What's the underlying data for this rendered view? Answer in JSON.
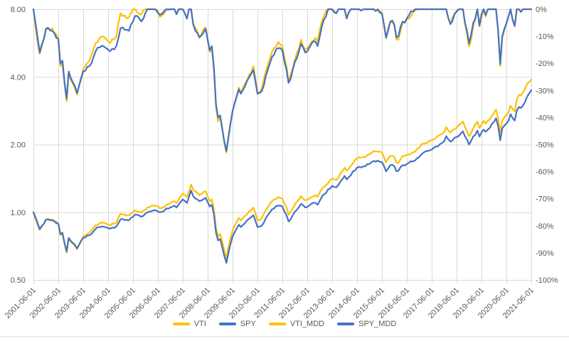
{
  "figure": {
    "background": "#ffffff",
    "grid_color": "#d9d9d9",
    "frame_line_color": "#d9d9d9",
    "tick_label_color": "#595959",
    "accent_yellow": "#FFC000",
    "accent_blue": "#4472C4"
  },
  "left_axis": {
    "scale": "log2",
    "min": 0.5,
    "max": 8.0,
    "ticks": [
      "8.00",
      "4.00",
      "2.00",
      "1.00",
      "0.50"
    ]
  },
  "right_axis": {
    "scale": "linear",
    "min": -100,
    "max": 0,
    "ticks": [
      "0%",
      "-10%",
      "-20%",
      "-30%",
      "-40%",
      "-50%",
      "-60%",
      "-70%",
      "-80%",
      "-90%",
      "-100%"
    ]
  },
  "x_axis": {
    "ticks": [
      "2001-06-01",
      "2002-06-01",
      "2003-06-01",
      "2004-06-01",
      "2005-06-01",
      "2006-06-01",
      "2007-06-01",
      "2008-06-01",
      "2009-06-01",
      "2010-06-01",
      "2011-06-01",
      "2012-06-01",
      "2013-06-01",
      "2014-06-01",
      "2015-06-01",
      "2016-06-01",
      "2017-06-01",
      "2018-06-01",
      "2019-06-01",
      "2020-06-01",
      "2021-06-01"
    ]
  },
  "legend": [
    {
      "label": "VTI",
      "color": "#FFC000"
    },
    {
      "label": "SPY",
      "color": "#4472C4"
    },
    {
      "label": "VTI_MDD",
      "color": "#FFC000"
    },
    {
      "label": "SPY_MDD",
      "color": "#4472C4"
    }
  ],
  "chart_data": {
    "type": "line",
    "title": "",
    "x_start": "2001-06",
    "x_end": "2021-06",
    "frequency": "monthly",
    "grid": true,
    "legend_position": "bottom",
    "left_axis_range": [
      0.5,
      8.0
    ],
    "right_axis_range": [
      -100,
      0
    ],
    "series": [
      {
        "name": "VTI",
        "color": "#FFC000",
        "axis": "left",
        "description": "VTI cumulative growth of $1 since 2001-06 (log scale), monthly",
        "anchors": [
          [
            "2001-06",
            1.0
          ],
          [
            "2001-09",
            0.835
          ],
          [
            "2001-12",
            0.93
          ],
          [
            "2002-03",
            0.93
          ],
          [
            "2002-06",
            0.89
          ],
          [
            "2002-07",
            0.79
          ],
          [
            "2002-08",
            0.8
          ],
          [
            "2002-09",
            0.72
          ],
          [
            "2002-10",
            0.66
          ],
          [
            "2002-11",
            0.76
          ],
          [
            "2003-01",
            0.725
          ],
          [
            "2003-03",
            0.685
          ],
          [
            "2003-06",
            0.78
          ],
          [
            "2003-09",
            0.81
          ],
          [
            "2003-12",
            0.875
          ],
          [
            "2004-03",
            0.9
          ],
          [
            "2004-07",
            0.875
          ],
          [
            "2004-10",
            0.9
          ],
          [
            "2004-12",
            0.985
          ],
          [
            "2005-04",
            0.97
          ],
          [
            "2005-07",
            1.02
          ],
          [
            "2005-10",
            1.0
          ],
          [
            "2006-01",
            1.05
          ],
          [
            "2006-05",
            1.07
          ],
          [
            "2006-07",
            1.04
          ],
          [
            "2006-12",
            1.1
          ],
          [
            "2007-02",
            1.12
          ],
          [
            "2007-03",
            1.1
          ],
          [
            "2007-06",
            1.21
          ],
          [
            "2007-08",
            1.17
          ],
          [
            "2007-10",
            1.33
          ],
          [
            "2007-11",
            1.26
          ],
          [
            "2008-02",
            1.19
          ],
          [
            "2008-05",
            1.24
          ],
          [
            "2008-07",
            1.12
          ],
          [
            "2008-08",
            1.14
          ],
          [
            "2008-09",
            1.03
          ],
          [
            "2008-10",
            0.85
          ],
          [
            "2008-11",
            0.78
          ],
          [
            "2008-12",
            0.8
          ],
          [
            "2009-02",
            0.675
          ],
          [
            "2009-03",
            0.625
          ],
          [
            "2009-04",
            0.7
          ],
          [
            "2009-06",
            0.83
          ],
          [
            "2009-09",
            0.945
          ],
          [
            "2009-10",
            0.92
          ],
          [
            "2010-01",
            0.98
          ],
          [
            "2010-04",
            1.05
          ],
          [
            "2010-06",
            0.92
          ],
          [
            "2010-08",
            0.94
          ],
          [
            "2010-12",
            1.09
          ],
          [
            "2011-02",
            1.14
          ],
          [
            "2011-04",
            1.17
          ],
          [
            "2011-06",
            1.15
          ],
          [
            "2011-08",
            1.05
          ],
          [
            "2011-09",
            0.975
          ],
          [
            "2011-11",
            1.04
          ],
          [
            "2012-03",
            1.18
          ],
          [
            "2012-05",
            1.13
          ],
          [
            "2012-08",
            1.17
          ],
          [
            "2012-10",
            1.19
          ],
          [
            "2012-11",
            1.17
          ],
          [
            "2013-01",
            1.27
          ],
          [
            "2013-06",
            1.41
          ],
          [
            "2013-08",
            1.39
          ],
          [
            "2013-12",
            1.58
          ],
          [
            "2014-01",
            1.53
          ],
          [
            "2014-06",
            1.74
          ],
          [
            "2014-09",
            1.76
          ],
          [
            "2014-12",
            1.81
          ],
          [
            "2015-02",
            1.87
          ],
          [
            "2015-06",
            1.85
          ],
          [
            "2015-08",
            1.67
          ],
          [
            "2015-10",
            1.78
          ],
          [
            "2015-12",
            1.76
          ],
          [
            "2016-01",
            1.66
          ],
          [
            "2016-02",
            1.66
          ],
          [
            "2016-04",
            1.78
          ],
          [
            "2016-06",
            1.8
          ],
          [
            "2016-10",
            1.86
          ],
          [
            "2016-11",
            1.92
          ],
          [
            "2017-02",
            2.02
          ],
          [
            "2017-06",
            2.09
          ],
          [
            "2017-12",
            2.27
          ],
          [
            "2018-01",
            2.39
          ],
          [
            "2018-03",
            2.26
          ],
          [
            "2018-06",
            2.38
          ],
          [
            "2018-09",
            2.53
          ],
          [
            "2018-12",
            2.18
          ],
          [
            "2019-04",
            2.53
          ],
          [
            "2019-05",
            2.37
          ],
          [
            "2019-07",
            2.55
          ],
          [
            "2019-08",
            2.48
          ],
          [
            "2019-12",
            2.76
          ],
          [
            "2020-01",
            2.86
          ],
          [
            "2020-02",
            2.63
          ],
          [
            "2020-03",
            2.26
          ],
          [
            "2020-04",
            2.56
          ],
          [
            "2020-07",
            2.78
          ],
          [
            "2020-08",
            2.98
          ],
          [
            "2020-09",
            2.87
          ],
          [
            "2020-10",
            2.81
          ],
          [
            "2020-11",
            3.17
          ],
          [
            "2020-12",
            3.32
          ],
          [
            "2021-01",
            3.31
          ],
          [
            "2021-03",
            3.56
          ],
          [
            "2021-04",
            3.73
          ],
          [
            "2021-06",
            3.89
          ]
        ]
      },
      {
        "name": "SPY",
        "color": "#4472C4",
        "axis": "left",
        "description": "SPY cumulative growth of $1 since 2001-06 (log scale), monthly",
        "anchors": [
          [
            "2001-06",
            1.0
          ],
          [
            "2001-09",
            0.84
          ],
          [
            "2001-12",
            0.925
          ],
          [
            "2002-03",
            0.92
          ],
          [
            "2002-06",
            0.89
          ],
          [
            "2002-07",
            0.8
          ],
          [
            "2002-08",
            0.81
          ],
          [
            "2002-09",
            0.73
          ],
          [
            "2002-10",
            0.67
          ],
          [
            "2002-11",
            0.77
          ],
          [
            "2003-01",
            0.73
          ],
          [
            "2003-03",
            0.69
          ],
          [
            "2003-06",
            0.77
          ],
          [
            "2003-09",
            0.79
          ],
          [
            "2003-12",
            0.845
          ],
          [
            "2004-03",
            0.865
          ],
          [
            "2004-07",
            0.845
          ],
          [
            "2004-10",
            0.865
          ],
          [
            "2004-12",
            0.93
          ],
          [
            "2005-04",
            0.92
          ],
          [
            "2005-07",
            0.975
          ],
          [
            "2005-10",
            0.955
          ],
          [
            "2006-01",
            1.0
          ],
          [
            "2006-05",
            1.02
          ],
          [
            "2006-07",
            1.0
          ],
          [
            "2006-12",
            1.05
          ],
          [
            "2007-02",
            1.07
          ],
          [
            "2007-03",
            1.05
          ],
          [
            "2007-06",
            1.14
          ],
          [
            "2007-08",
            1.1
          ],
          [
            "2007-10",
            1.25
          ],
          [
            "2007-11",
            1.18
          ],
          [
            "2008-02",
            1.12
          ],
          [
            "2008-05",
            1.16
          ],
          [
            "2008-07",
            1.06
          ],
          [
            "2008-08",
            1.08
          ],
          [
            "2008-09",
            0.98
          ],
          [
            "2008-10",
            0.81
          ],
          [
            "2008-11",
            0.75
          ],
          [
            "2008-12",
            0.76
          ],
          [
            "2009-02",
            0.64
          ],
          [
            "2009-03",
            0.595
          ],
          [
            "2009-04",
            0.66
          ],
          [
            "2009-06",
            0.78
          ],
          [
            "2009-09",
            0.88
          ],
          [
            "2009-10",
            0.86
          ],
          [
            "2010-01",
            0.92
          ],
          [
            "2010-04",
            0.97
          ],
          [
            "2010-06",
            0.86
          ],
          [
            "2010-08",
            0.87
          ],
          [
            "2010-12",
            1.0
          ],
          [
            "2011-02",
            1.04
          ],
          [
            "2011-04",
            1.07
          ],
          [
            "2011-06",
            1.06
          ],
          [
            "2011-08",
            0.97
          ],
          [
            "2011-09",
            0.91
          ],
          [
            "2011-11",
            0.97
          ],
          [
            "2012-03",
            1.09
          ],
          [
            "2012-05",
            1.05
          ],
          [
            "2012-08",
            1.09
          ],
          [
            "2012-10",
            1.1
          ],
          [
            "2012-11",
            1.08
          ],
          [
            "2013-01",
            1.17
          ],
          [
            "2013-06",
            1.31
          ],
          [
            "2013-08",
            1.29
          ],
          [
            "2013-12",
            1.45
          ],
          [
            "2014-01",
            1.4
          ],
          [
            "2014-06",
            1.58
          ],
          [
            "2014-09",
            1.6
          ],
          [
            "2014-12",
            1.64
          ],
          [
            "2015-02",
            1.69
          ],
          [
            "2015-06",
            1.67
          ],
          [
            "2015-08",
            1.52
          ],
          [
            "2015-10",
            1.62
          ],
          [
            "2015-12",
            1.6
          ],
          [
            "2016-01",
            1.52
          ],
          [
            "2016-02",
            1.53
          ],
          [
            "2016-04",
            1.62
          ],
          [
            "2016-06",
            1.64
          ],
          [
            "2016-10",
            1.7
          ],
          [
            "2016-11",
            1.74
          ],
          [
            "2017-02",
            1.84
          ],
          [
            "2017-06",
            1.9
          ],
          [
            "2017-12",
            2.07
          ],
          [
            "2018-01",
            2.18
          ],
          [
            "2018-03",
            2.06
          ],
          [
            "2018-06",
            2.16
          ],
          [
            "2018-09",
            2.29
          ],
          [
            "2018-12",
            2.0
          ],
          [
            "2019-04",
            2.31
          ],
          [
            "2019-05",
            2.17
          ],
          [
            "2019-07",
            2.33
          ],
          [
            "2019-08",
            2.28
          ],
          [
            "2019-12",
            2.52
          ],
          [
            "2020-01",
            2.62
          ],
          [
            "2020-02",
            2.42
          ],
          [
            "2020-03",
            2.09
          ],
          [
            "2020-04",
            2.36
          ],
          [
            "2020-07",
            2.55
          ],
          [
            "2020-08",
            2.73
          ],
          [
            "2020-09",
            2.62
          ],
          [
            "2020-10",
            2.56
          ],
          [
            "2020-11",
            2.83
          ],
          [
            "2020-12",
            2.94
          ],
          [
            "2021-01",
            2.91
          ],
          [
            "2021-03",
            3.1
          ],
          [
            "2021-04",
            3.27
          ],
          [
            "2021-06",
            3.49
          ]
        ]
      },
      {
        "name": "VTI_MDD",
        "color": "#FFC000",
        "axis": "right",
        "derived": "running_drawdown_of_VTI_percent",
        "key_points": [
          [
            "2001-06",
            0
          ],
          [
            "2001-09",
            -16.5
          ],
          [
            "2002-01",
            -7
          ],
          [
            "2002-10",
            -34
          ],
          [
            "2003-03",
            -31.5
          ],
          [
            "2004-12",
            0
          ],
          [
            "2007-10",
            0
          ],
          [
            "2008-11",
            -41
          ],
          [
            "2009-03",
            -53
          ],
          [
            "2009-06",
            -37.5
          ],
          [
            "2010-06",
            -30.8
          ],
          [
            "2011-04",
            -12
          ],
          [
            "2011-09",
            -26.7
          ],
          [
            "2013-03",
            0
          ],
          [
            "2015-08",
            -10.7
          ],
          [
            "2016-02",
            -11.2
          ],
          [
            "2018-12",
            -13.8
          ],
          [
            "2020-03",
            -21
          ],
          [
            "2020-08",
            0
          ],
          [
            "2021-06",
            0
          ]
        ]
      },
      {
        "name": "SPY_MDD",
        "color": "#4472C4",
        "axis": "right",
        "derived": "running_drawdown_of_SPY_percent",
        "key_points": [
          [
            "2001-06",
            0
          ],
          [
            "2001-09",
            -16
          ],
          [
            "2002-01",
            -7.5
          ],
          [
            "2002-10",
            -33
          ],
          [
            "2003-03",
            -31
          ],
          [
            "2006-01",
            0
          ],
          [
            "2007-10",
            0
          ],
          [
            "2008-11",
            -40
          ],
          [
            "2009-03",
            -52.4
          ],
          [
            "2009-06",
            -37.6
          ],
          [
            "2010-06",
            -31.2
          ],
          [
            "2011-04",
            -14.4
          ],
          [
            "2011-09",
            -27.2
          ],
          [
            "2013-04",
            0
          ],
          [
            "2015-08",
            -10.1
          ],
          [
            "2016-02",
            -9.5
          ],
          [
            "2018-12",
            -12.7
          ],
          [
            "2020-03",
            -20.2
          ],
          [
            "2020-08",
            0
          ],
          [
            "2021-06",
            0
          ]
        ]
      }
    ]
  }
}
